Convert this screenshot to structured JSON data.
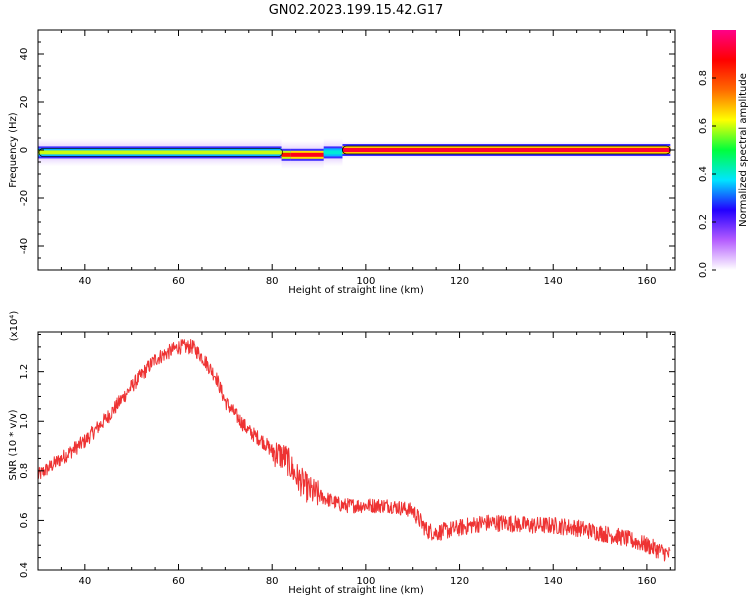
{
  "figure": {
    "title": "GN02.2023.199.15.42.G17"
  },
  "chart_data": [
    {
      "type": "heatmap",
      "name": "spectrogram-panel",
      "xlabel": "Height of straight line (km)",
      "ylabel": "Frequency (Hz)",
      "xlim": [
        30,
        166
      ],
      "ylim": [
        -50,
        50
      ],
      "x_ticks": [
        40,
        60,
        80,
        100,
        120,
        140,
        160
      ],
      "y_ticks": [
        -40,
        -20,
        0,
        20,
        40
      ],
      "grid": false,
      "colorbar": {
        "label": "Normalized spectral amplitude",
        "range": [
          0,
          1
        ],
        "ticks": [
          "0.0",
          "0.2",
          "0.4",
          "0.6",
          "0.8"
        ],
        "colors": [
          "#ffffff",
          "#b45cff",
          "#2200ff",
          "#00e5ff",
          "#00ff3c",
          "#ffff00",
          "#ff6a00",
          "#ff0000",
          "#ff0088"
        ]
      },
      "ridge": [
        {
          "x_start": 30,
          "x_end": 82,
          "freq": -1,
          "amplitude": 0.6
        },
        {
          "x_start": 82,
          "x_end": 84,
          "freq": -2,
          "amplitude": 0.85
        },
        {
          "x_start": 84,
          "x_end": 91,
          "freq": -2,
          "amplitude": 0.9
        },
        {
          "x_start": 91,
          "x_end": 95,
          "freq": -1,
          "amplitude": 0.4
        },
        {
          "x_start": 95,
          "x_end": 165,
          "freq": 0,
          "amplitude": 0.92
        }
      ]
    },
    {
      "type": "line",
      "name": "snr-panel",
      "xlabel": "Height of straight line (km)",
      "ylabel": "SNR (10 * v/v)",
      "y_multiplier": "(x10⁴)",
      "xlim": [
        30,
        166
      ],
      "ylim": [
        0.4,
        1.36
      ],
      "x_ticks": [
        40,
        60,
        80,
        100,
        120,
        140,
        160
      ],
      "y_ticks": [
        "0.4",
        "0.6",
        "0.8",
        "1.0",
        "1.2"
      ],
      "grid": false,
      "series": [
        {
          "color": "#ee3333",
          "x": [
            30,
            35,
            40,
            45,
            50,
            55,
            60,
            63,
            65,
            68,
            70,
            72,
            75,
            78,
            80,
            83,
            85,
            88,
            90,
            95,
            100,
            105,
            110,
            113,
            115,
            120,
            125,
            130,
            135,
            140,
            145,
            150,
            155,
            160,
            165
          ],
          "y": [
            0.78,
            0.85,
            0.92,
            1.02,
            1.14,
            1.25,
            1.3,
            1.3,
            1.26,
            1.18,
            1.08,
            1.03,
            0.96,
            0.92,
            0.88,
            0.85,
            0.78,
            0.72,
            0.7,
            0.66,
            0.66,
            0.66,
            0.64,
            0.56,
            0.55,
            0.57,
            0.59,
            0.59,
            0.58,
            0.58,
            0.57,
            0.55,
            0.53,
            0.5,
            0.46
          ]
        }
      ]
    }
  ]
}
